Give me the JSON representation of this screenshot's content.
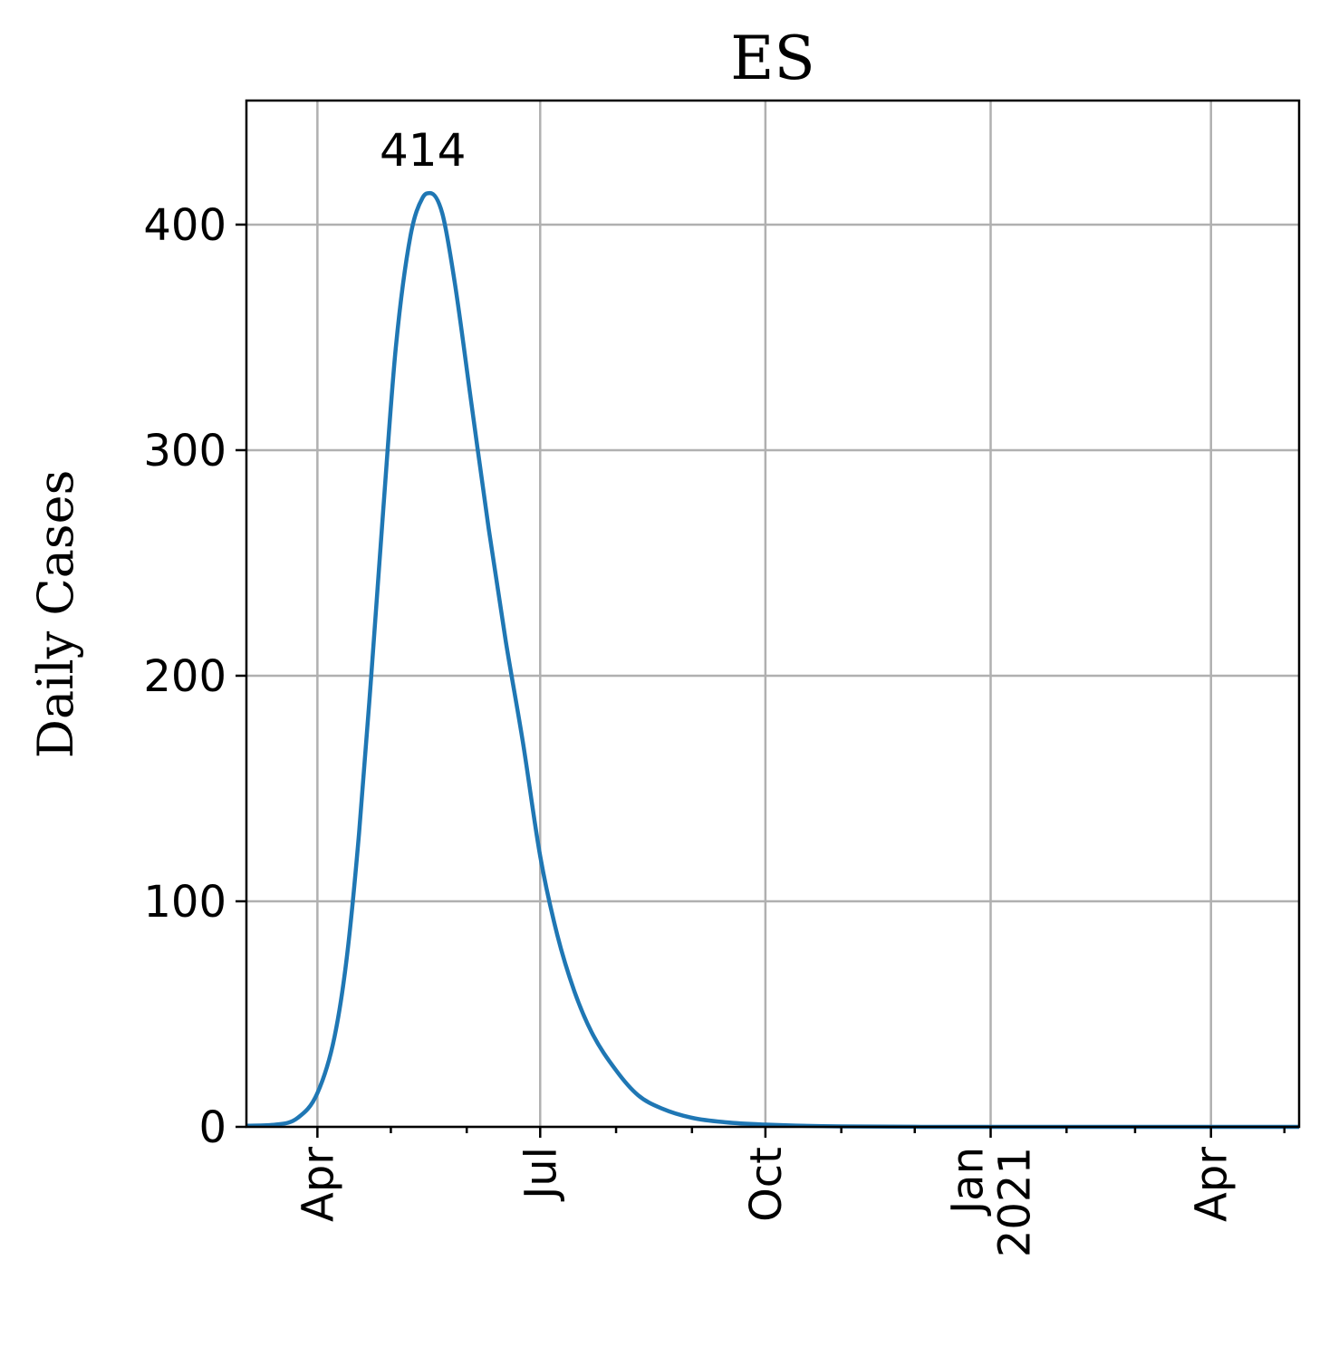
{
  "chart_data": {
    "type": "line",
    "title": "ES",
    "xlabel": "",
    "ylabel": "Daily Cases",
    "xlim": [
      "2020-03-03",
      "2021-05-07"
    ],
    "ylim": [
      0,
      455
    ],
    "yticks": [
      0,
      100,
      200,
      300,
      400
    ],
    "xticks": [
      {
        "date": "2020-04-01",
        "label": [
          "Apr"
        ]
      },
      {
        "date": "2020-07-01",
        "label": [
          "Jul"
        ]
      },
      {
        "date": "2020-10-01",
        "label": [
          "Oct"
        ]
      },
      {
        "date": "2021-01-01",
        "label": [
          "Jan",
          "2021"
        ]
      },
      {
        "date": "2021-04-01",
        "label": [
          "Apr"
        ]
      }
    ],
    "minor_xticks": [
      "2020-03-01",
      "2020-05-01",
      "2020-06-01",
      "2020-08-01",
      "2020-09-01",
      "2020-11-01",
      "2020-12-01",
      "2021-02-01",
      "2021-03-01",
      "2021-05-01"
    ],
    "grid": true,
    "series": [
      {
        "color": "#1f77b4",
        "points": [
          {
            "x": "2020-03-03",
            "y": 0.5
          },
          {
            "x": "2020-03-15",
            "y": 1
          },
          {
            "x": "2020-03-24",
            "y": 4
          },
          {
            "x": "2020-04-01",
            "y": 15
          },
          {
            "x": "2020-04-08",
            "y": 40
          },
          {
            "x": "2020-04-13",
            "y": 75
          },
          {
            "x": "2020-04-18",
            "y": 130
          },
          {
            "x": "2020-04-23",
            "y": 200
          },
          {
            "x": "2020-04-28",
            "y": 275
          },
          {
            "x": "2020-05-03",
            "y": 345
          },
          {
            "x": "2020-05-09",
            "y": 395
          },
          {
            "x": "2020-05-14",
            "y": 412
          },
          {
            "x": "2020-05-17",
            "y": 414
          },
          {
            "x": "2020-05-22",
            "y": 405
          },
          {
            "x": "2020-05-27",
            "y": 375
          },
          {
            "x": "2020-06-03",
            "y": 320
          },
          {
            "x": "2020-06-10",
            "y": 265
          },
          {
            "x": "2020-06-17",
            "y": 215
          },
          {
            "x": "2020-06-24",
            "y": 170
          },
          {
            "x": "2020-07-01",
            "y": 120
          },
          {
            "x": "2020-07-08",
            "y": 85
          },
          {
            "x": "2020-07-15",
            "y": 60
          },
          {
            "x": "2020-07-22",
            "y": 42
          },
          {
            "x": "2020-08-01",
            "y": 25
          },
          {
            "x": "2020-08-10",
            "y": 14
          },
          {
            "x": "2020-08-20",
            "y": 8
          },
          {
            "x": "2020-09-01",
            "y": 4
          },
          {
            "x": "2020-09-15",
            "y": 2
          },
          {
            "x": "2020-10-01",
            "y": 1
          },
          {
            "x": "2020-11-01",
            "y": 0.2
          },
          {
            "x": "2021-01-01",
            "y": 0
          },
          {
            "x": "2021-05-07",
            "y": 0
          }
        ]
      }
    ],
    "annotations": [
      {
        "text": "414",
        "x": "2020-05-17",
        "y": 414
      }
    ]
  }
}
